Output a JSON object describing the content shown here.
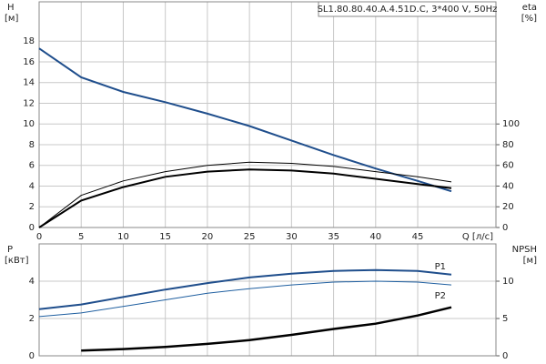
{
  "chart_data": [
    {
      "type": "line",
      "title": "SL1.80.80.40.A.4.51D.C, 3*400 V, 50Hz",
      "ylabel": "H",
      "yunit": "[м]",
      "y2label": "eta",
      "y2unit": "[%]",
      "xlabel": "Q [л/с]",
      "xlim": [
        0,
        54.3
      ],
      "xticks": [
        0,
        5,
        10,
        15,
        20,
        25,
        30,
        35,
        40,
        45
      ],
      "ylim": [
        0,
        21.8
      ],
      "yticks": [
        0,
        2,
        4,
        6,
        8,
        10,
        12,
        14,
        16,
        18
      ],
      "y2lim": [
        0,
        218
      ],
      "y2ticks": [
        0,
        20,
        40,
        60,
        80,
        100
      ],
      "grid": true,
      "x": [
        0,
        5,
        10,
        15,
        20,
        25,
        30,
        35,
        40,
        45,
        49
      ],
      "series": [
        {
          "color": "#1f4e8c",
          "linewidth": 2,
          "values": [
            17.3,
            14.5,
            13.1,
            12.1,
            11.0,
            9.8,
            8.4,
            7.0,
            5.7,
            4.5,
            3.5
          ]
        },
        {
          "color": "#000000",
          "linewidth": 1,
          "axis": "y2",
          "values": [
            0,
            31,
            45,
            54,
            60,
            63,
            62,
            59,
            54,
            49,
            44
          ]
        },
        {
          "color": "#000000",
          "linewidth": 2,
          "axis": "y2",
          "values": [
            0,
            26,
            39,
            49,
            54,
            56,
            55,
            52,
            47,
            42,
            38
          ]
        }
      ]
    },
    {
      "type": "line",
      "ylabel": "P",
      "yunit": "[кВт]",
      "y2label": "NPSH",
      "y2unit": "[м]",
      "xlim": [
        0,
        54.3
      ],
      "ylim": [
        0,
        6
      ],
      "yticks": [
        0,
        2,
        4
      ],
      "y2lim": [
        0,
        15
      ],
      "y2ticks": [
        0,
        5,
        10
      ],
      "grid": true,
      "x": [
        0,
        5,
        10,
        15,
        20,
        25,
        30,
        35,
        40,
        45,
        49
      ],
      "series": [
        {
          "name": "P1",
          "color": "#1f4e8c",
          "linewidth": 2,
          "values": [
            2.5,
            2.75,
            3.15,
            3.55,
            3.9,
            4.2,
            4.4,
            4.55,
            4.6,
            4.55,
            4.35
          ]
        },
        {
          "name": "P2",
          "color": "#1f5fa0",
          "linewidth": 1,
          "values": [
            2.1,
            2.3,
            2.65,
            3.0,
            3.35,
            3.6,
            3.8,
            3.95,
            4.0,
            3.95,
            3.8
          ]
        },
        {
          "color": "#000000",
          "linewidth": 2.5,
          "axis": "y2",
          "values": [
            null,
            0.7,
            0.9,
            1.2,
            1.6,
            2.1,
            2.8,
            3.6,
            4.3,
            5.4,
            6.5
          ]
        }
      ]
    }
  ]
}
